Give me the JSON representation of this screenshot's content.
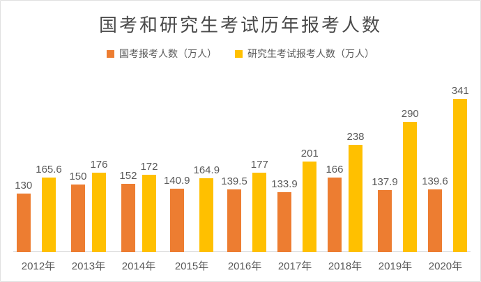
{
  "chart_data": {
    "type": "bar",
    "title": "国考和研究生考试历年报考人数",
    "categories": [
      "2012年",
      "2013年",
      "2014年",
      "2015年",
      "2016年",
      "2017年",
      "2018年",
      "2019年",
      "2020年"
    ],
    "series": [
      {
        "name": "国考报考人数（万人）",
        "color": "#ED7D31",
        "values": [
          130,
          150,
          152,
          140.9,
          139.5,
          133.9,
          166,
          137.9,
          139.6
        ]
      },
      {
        "name": "研究生考试报考人数（万人）",
        "color": "#FFC000",
        "values": [
          165.6,
          176,
          172,
          164.9,
          177,
          201,
          238,
          290,
          341
        ]
      }
    ],
    "xlabel": "",
    "ylabel": "",
    "ylim": [
      0,
      341
    ],
    "grid": false,
    "legend_position": "top",
    "value_labels": true
  },
  "colors": {
    "title_text": "#4a4a4a",
    "label_text": "#595959",
    "axis_line": "#d9d9d9",
    "card_border": "#e0e0e0",
    "background": "#ffffff"
  }
}
